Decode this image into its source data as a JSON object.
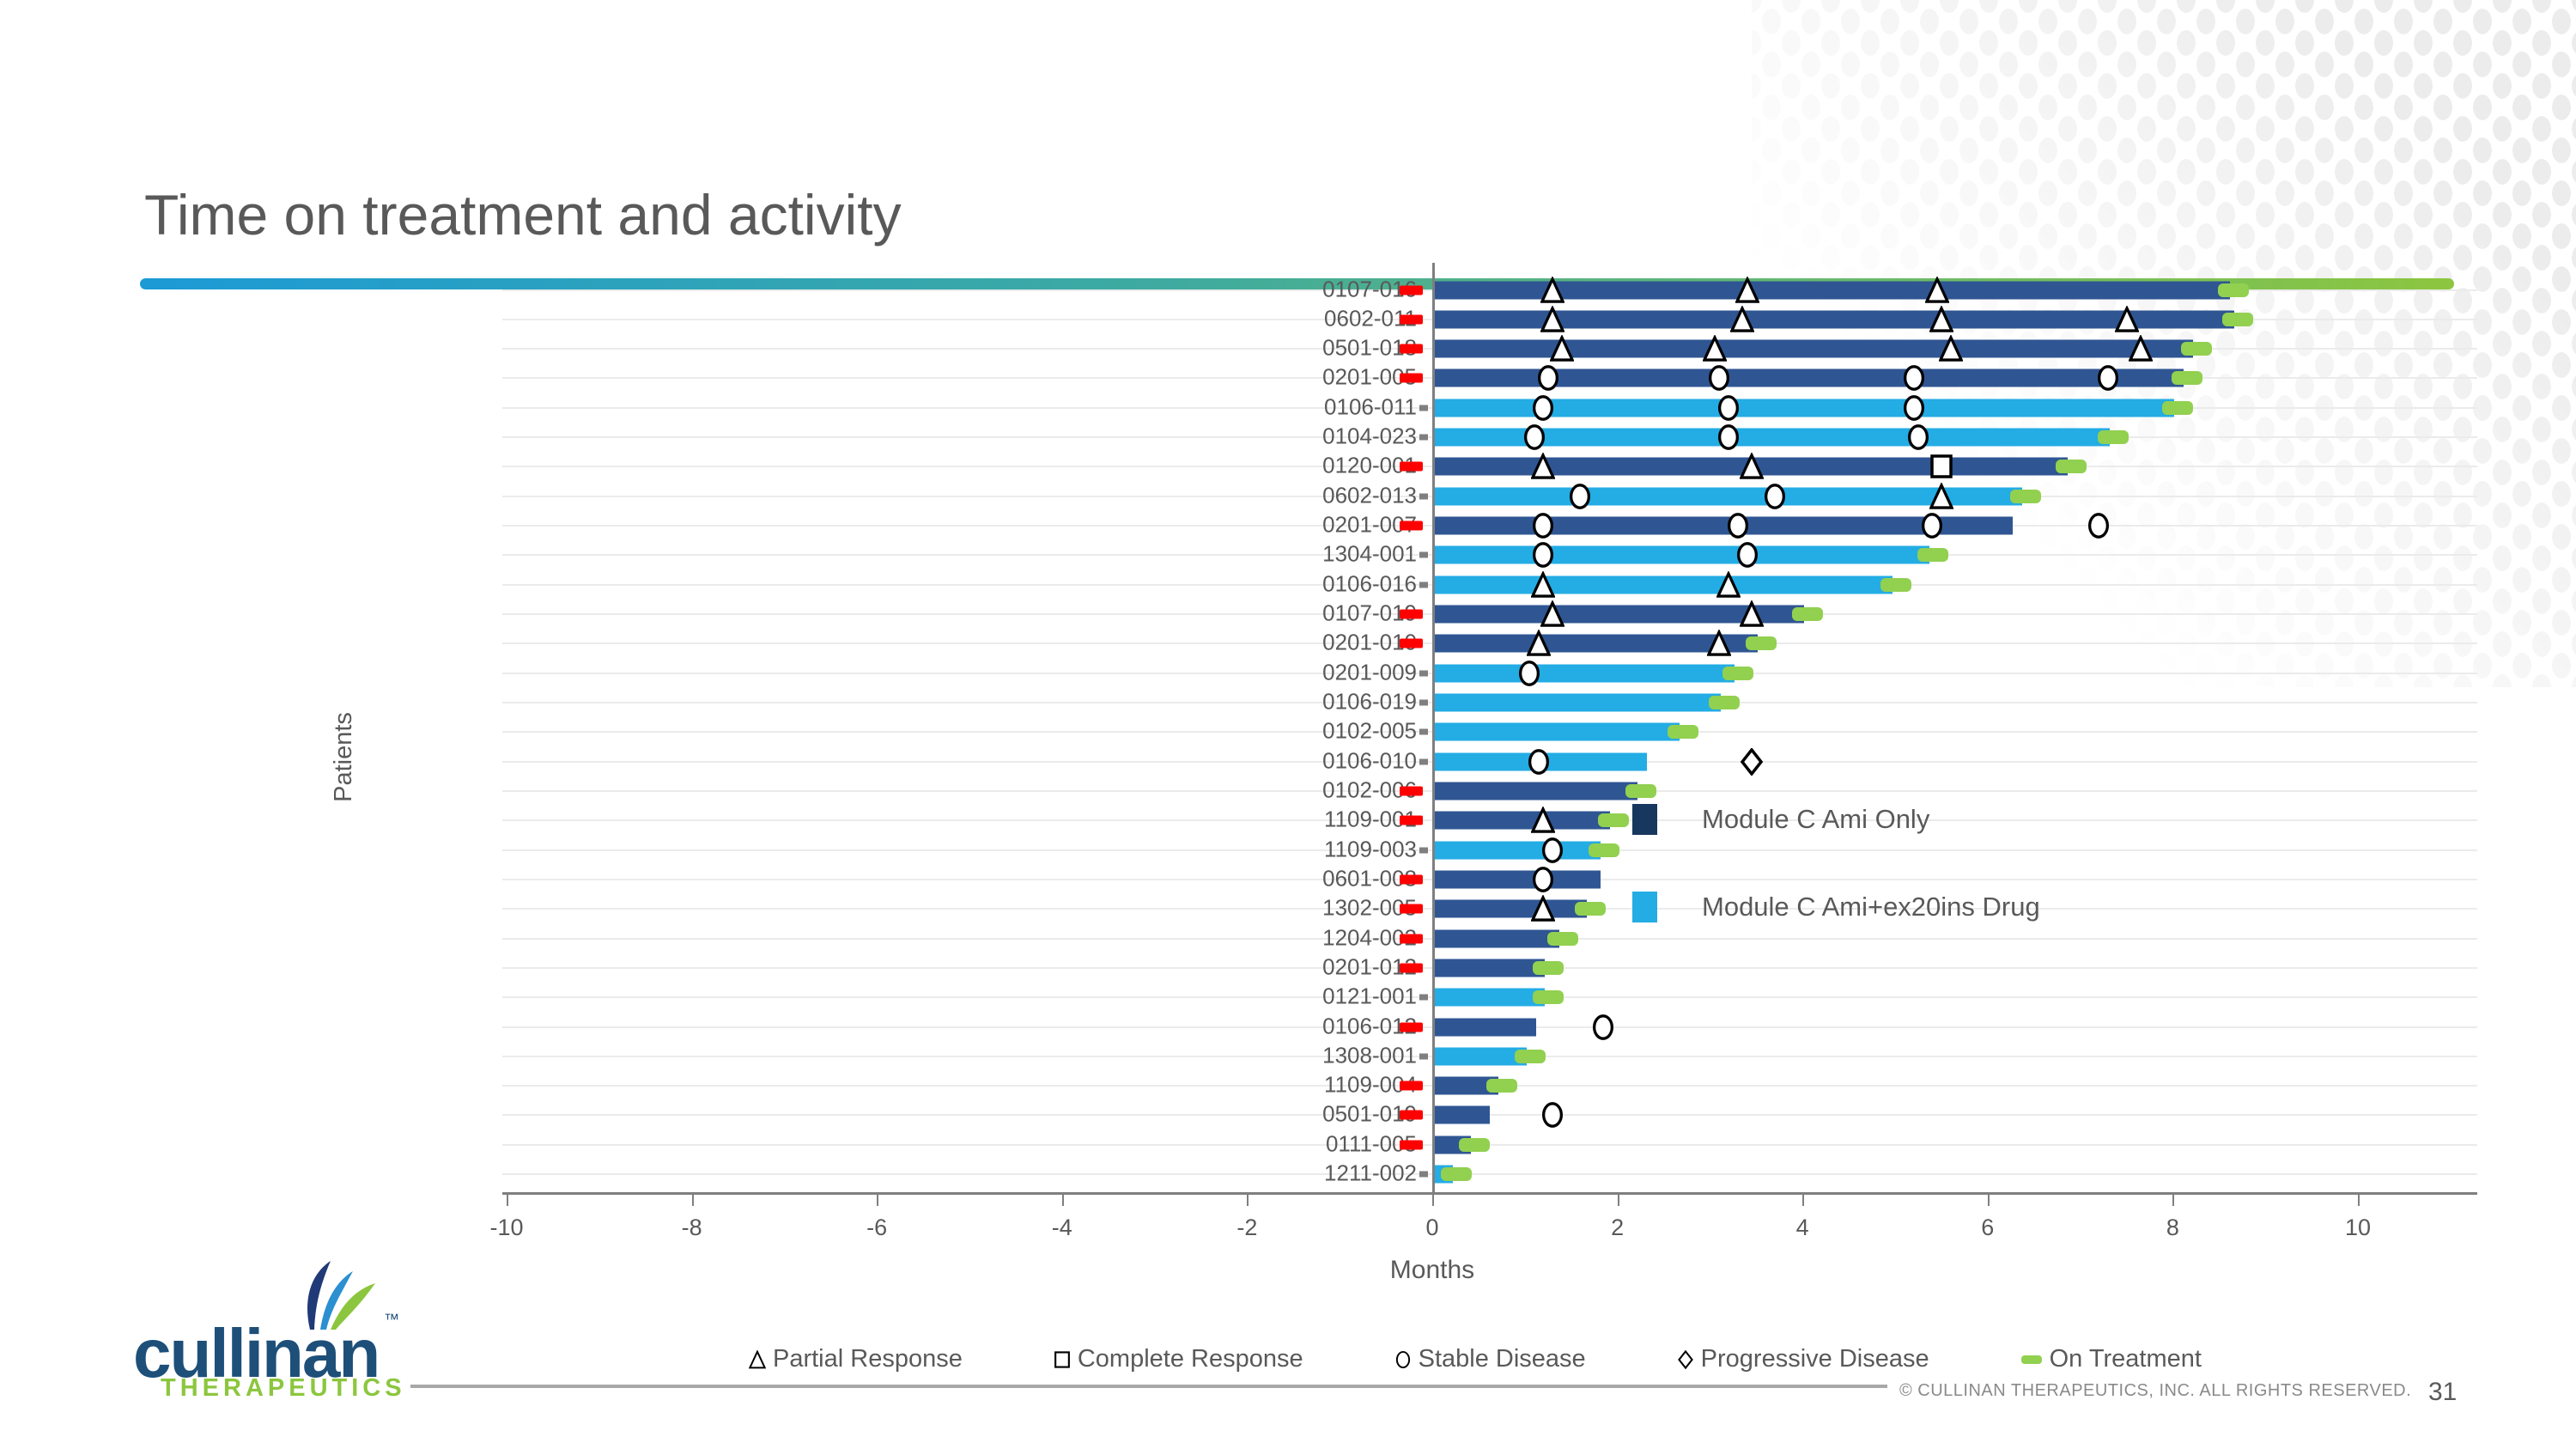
{
  "header": {
    "title": "Time on treatment and activity"
  },
  "footer": {
    "copyright": "© CULLINAN THERAPEUTICS, INC. ALL RIGHTS RESERVED.",
    "page_number": "31"
  },
  "logo": {
    "wordmark": "cullinan",
    "tm": "™",
    "subtext": "THERAPEUTICS"
  },
  "colors": {
    "bar_ami_only": "#2f5693",
    "bar_ami_ex20ins": "#24ace4",
    "on_treatment_green": "#92d050",
    "start_marker_red": "#ff0000",
    "swatch_ami_only": "#17375e",
    "title_rule_start": "#1c9ad6",
    "title_rule_end": "#8dc63f",
    "text_gray": "#595959"
  },
  "chart_data": {
    "type": "bar",
    "orientation": "horizontal-swimmer",
    "title": "",
    "xlabel": "Months",
    "ylabel": "Patients",
    "xlim": [
      -10,
      10
    ],
    "xticks": [
      -10,
      -8,
      -6,
      -4,
      -2,
      0,
      2,
      4,
      6,
      8,
      10
    ],
    "grid": "horizontal-light",
    "series_legend": [
      {
        "group": "ami_only",
        "label": "Module C Ami Only",
        "color": "#17375e"
      },
      {
        "group": "ami_ex20ins",
        "label": "Module C Ami+ex20ins Drug",
        "color": "#24ace4"
      }
    ],
    "marker_types": {
      "PR": {
        "label": "Partial Response",
        "shape": "triangle"
      },
      "CR": {
        "label": "Complete Response",
        "shape": "square"
      },
      "SD": {
        "label": "Stable Disease",
        "shape": "circle"
      },
      "PD": {
        "label": "Progressive Disease",
        "shape": "diamond"
      },
      "OT": {
        "label": "On Treatment",
        "shape": "dash"
      }
    },
    "marker_legend_order": [
      "PR",
      "CR",
      "SD",
      "PD",
      "OT"
    ],
    "patients": [
      {
        "id": "0107-016",
        "group": "ami_only",
        "end": 8.6,
        "on_treatment": true,
        "markers": [
          {
            "t": "PR",
            "m": 1.3
          },
          {
            "t": "PR",
            "m": 3.4
          },
          {
            "t": "PR",
            "m": 5.45
          }
        ]
      },
      {
        "id": "0602-011",
        "group": "ami_only",
        "end": 8.65,
        "on_treatment": true,
        "markers": [
          {
            "t": "PR",
            "m": 1.3
          },
          {
            "t": "PR",
            "m": 3.35
          },
          {
            "t": "PR",
            "m": 5.5
          },
          {
            "t": "PR",
            "m": 7.5
          }
        ]
      },
      {
        "id": "0501-018",
        "group": "ami_only",
        "end": 8.2,
        "on_treatment": true,
        "markers": [
          {
            "t": "PR",
            "m": 1.4
          },
          {
            "t": "PR",
            "m": 3.05
          },
          {
            "t": "PR",
            "m": 5.6
          },
          {
            "t": "PR",
            "m": 7.65
          }
        ]
      },
      {
        "id": "0201-005",
        "group": "ami_only",
        "end": 8.1,
        "on_treatment": true,
        "markers": [
          {
            "t": "SD",
            "m": 1.25
          },
          {
            "t": "SD",
            "m": 3.1
          },
          {
            "t": "SD",
            "m": 5.2
          },
          {
            "t": "SD",
            "m": 7.3
          }
        ]
      },
      {
        "id": "0106-011",
        "group": "ami_ex20ins",
        "end": 8.0,
        "on_treatment": true,
        "markers": [
          {
            "t": "SD",
            "m": 1.2
          },
          {
            "t": "SD",
            "m": 3.2
          },
          {
            "t": "SD",
            "m": 5.2
          }
        ]
      },
      {
        "id": "0104-023",
        "group": "ami_ex20ins",
        "end": 7.3,
        "on_treatment": true,
        "markers": [
          {
            "t": "SD",
            "m": 1.1
          },
          {
            "t": "SD",
            "m": 3.2
          },
          {
            "t": "SD",
            "m": 5.25
          }
        ]
      },
      {
        "id": "0120-001",
        "group": "ami_only",
        "end": 6.85,
        "on_treatment": true,
        "markers": [
          {
            "t": "PR",
            "m": 1.2
          },
          {
            "t": "PR",
            "m": 3.45
          },
          {
            "t": "CR",
            "m": 5.5
          }
        ]
      },
      {
        "id": "0602-013",
        "group": "ami_ex20ins",
        "end": 6.35,
        "on_treatment": true,
        "markers": [
          {
            "t": "SD",
            "m": 1.6
          },
          {
            "t": "SD",
            "m": 3.7
          },
          {
            "t": "PR",
            "m": 5.5
          }
        ]
      },
      {
        "id": "0201-007",
        "group": "ami_only",
        "end": 6.25,
        "on_treatment": false,
        "markers": [
          {
            "t": "SD",
            "m": 1.2
          },
          {
            "t": "SD",
            "m": 3.3
          },
          {
            "t": "SD",
            "m": 5.4
          },
          {
            "t": "SD",
            "m": 7.2
          }
        ]
      },
      {
        "id": "1304-001",
        "group": "ami_ex20ins",
        "end": 5.35,
        "on_treatment": true,
        "markers": [
          {
            "t": "SD",
            "m": 1.2
          },
          {
            "t": "SD",
            "m": 3.4
          }
        ]
      },
      {
        "id": "0106-016",
        "group": "ami_ex20ins",
        "end": 4.95,
        "on_treatment": true,
        "markers": [
          {
            "t": "PR",
            "m": 1.2
          },
          {
            "t": "PR",
            "m": 3.2
          }
        ]
      },
      {
        "id": "0107-019",
        "group": "ami_only",
        "end": 4.0,
        "on_treatment": true,
        "markers": [
          {
            "t": "PR",
            "m": 1.3
          },
          {
            "t": "PR",
            "m": 3.45
          }
        ]
      },
      {
        "id": "0201-010",
        "group": "ami_only",
        "end": 3.5,
        "on_treatment": true,
        "markers": [
          {
            "t": "PR",
            "m": 1.15
          },
          {
            "t": "PR",
            "m": 3.1
          }
        ]
      },
      {
        "id": "0201-009",
        "group": "ami_ex20ins",
        "end": 3.25,
        "on_treatment": true,
        "markers": [
          {
            "t": "SD",
            "m": 1.05
          }
        ]
      },
      {
        "id": "0106-019",
        "group": "ami_ex20ins",
        "end": 3.1,
        "on_treatment": true,
        "markers": []
      },
      {
        "id": "0102-005",
        "group": "ami_ex20ins",
        "end": 2.65,
        "on_treatment": true,
        "markers": []
      },
      {
        "id": "0106-010",
        "group": "ami_ex20ins",
        "end": 2.3,
        "on_treatment": false,
        "markers": [
          {
            "t": "SD",
            "m": 1.15
          },
          {
            "t": "PD",
            "m": 3.45
          }
        ]
      },
      {
        "id": "0102-006",
        "group": "ami_only",
        "end": 2.2,
        "on_treatment": true,
        "markers": []
      },
      {
        "id": "1109-001",
        "group": "ami_only",
        "end": 1.9,
        "on_treatment": true,
        "markers": [
          {
            "t": "PR",
            "m": 1.2
          }
        ]
      },
      {
        "id": "1109-003",
        "group": "ami_ex20ins",
        "end": 1.8,
        "on_treatment": true,
        "markers": [
          {
            "t": "SD",
            "m": 1.3
          }
        ]
      },
      {
        "id": "0601-008",
        "group": "ami_only",
        "end": 1.8,
        "on_treatment": false,
        "markers": [
          {
            "t": "SD",
            "m": 1.2
          }
        ]
      },
      {
        "id": "1302-005",
        "group": "ami_only",
        "end": 1.65,
        "on_treatment": true,
        "markers": [
          {
            "t": "PR",
            "m": 1.2
          }
        ]
      },
      {
        "id": "1204-002",
        "group": "ami_only",
        "end": 1.35,
        "on_treatment": true,
        "markers": []
      },
      {
        "id": "0201-012",
        "group": "ami_only",
        "end": 1.2,
        "on_treatment": true,
        "markers": []
      },
      {
        "id": "0121-001",
        "group": "ami_ex20ins",
        "end": 1.2,
        "on_treatment": true,
        "markers": []
      },
      {
        "id": "0106-012",
        "group": "ami_only",
        "end": 1.1,
        "on_treatment": false,
        "markers": [
          {
            "t": "SD",
            "m": 1.85
          }
        ]
      },
      {
        "id": "1308-001",
        "group": "ami_ex20ins",
        "end": 1.0,
        "on_treatment": true,
        "markers": []
      },
      {
        "id": "1109-004",
        "group": "ami_only",
        "end": 0.7,
        "on_treatment": true,
        "markers": []
      },
      {
        "id": "0501-019",
        "group": "ami_only",
        "end": 0.6,
        "on_treatment": false,
        "markers": [
          {
            "t": "SD",
            "m": 1.3
          }
        ]
      },
      {
        "id": "0111-005",
        "group": "ami_only",
        "end": 0.4,
        "on_treatment": true,
        "markers": []
      },
      {
        "id": "1211-002",
        "group": "ami_ex20ins",
        "end": 0.2,
        "on_treatment": true,
        "markers": []
      }
    ]
  }
}
